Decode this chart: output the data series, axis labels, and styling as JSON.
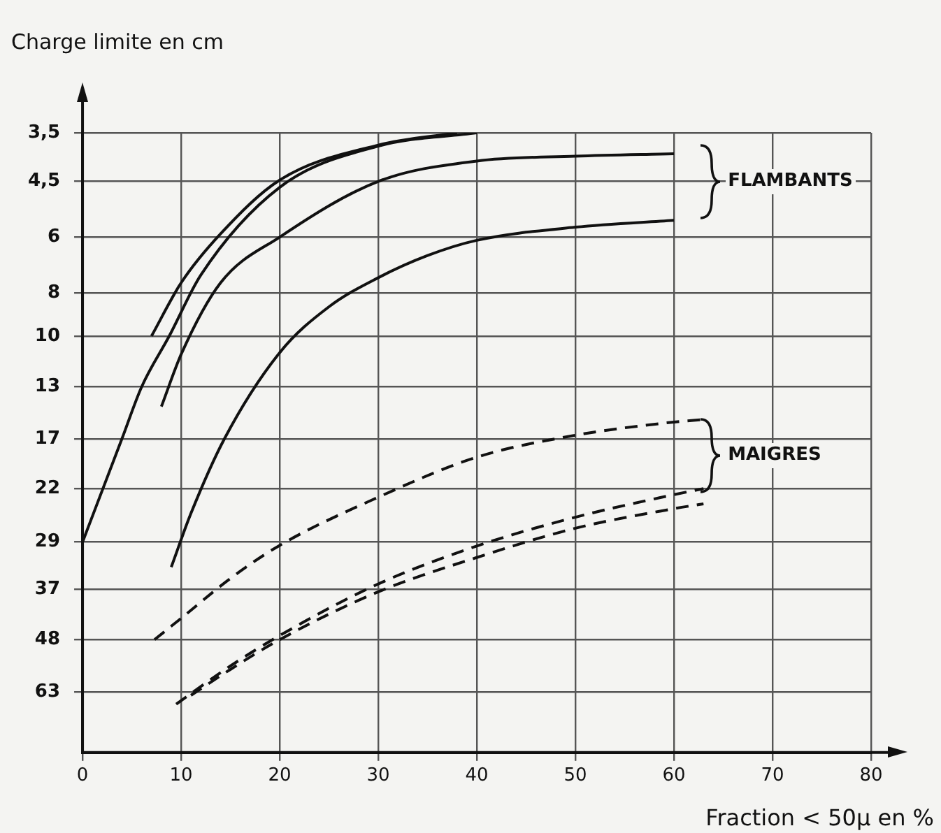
{
  "chart_data": {
    "type": "line",
    "ylabel": "Charge limite en cm",
    "xlabel": "Fraction < 50µ en %",
    "log": "y",
    "xlim": [
      0,
      80
    ],
    "xticks": [
      0,
      10,
      20,
      30,
      40,
      50,
      60,
      70,
      80
    ],
    "ylim": [
      86,
      3.5
    ],
    "yticks": [
      {
        "value": 3.5,
        "label": "3,5"
      },
      {
        "value": 4.5,
        "label": "4,5"
      },
      6,
      8,
      10,
      13,
      17,
      22,
      29,
      37,
      48,
      63
    ],
    "grid": true,
    "legend": false,
    "marker": "none",
    "series": [
      {
        "color": "#111111",
        "line_style": "solid",
        "x": [
          7,
          10,
          14,
          20,
          30,
          38
        ],
        "values": [
          10,
          7.6,
          5.9,
          4.47,
          3.73,
          3.5
        ]
      },
      {
        "color": "#111111",
        "line_style": "solid",
        "x": [
          0,
          4,
          6,
          8.8,
          12,
          20,
          30,
          40
        ],
        "values": [
          29,
          17,
          13,
          10,
          7.3,
          4.64,
          3.75,
          3.5
        ]
      },
      {
        "color": "#111111",
        "line_style": "solid",
        "x": [
          8,
          10,
          14,
          20,
          30,
          40,
          50,
          60
        ],
        "values": [
          14.4,
          11,
          7.6,
          6,
          4.5,
          4.05,
          3.95,
          3.9
        ]
      },
      {
        "color": "#111111",
        "line_style": "solid",
        "x": [
          9,
          11,
          14.4,
          20,
          25,
          30,
          35,
          40,
          50,
          60
        ],
        "values": [
          33,
          25,
          17,
          10.9,
          8.6,
          7.4,
          6.6,
          6.1,
          5.7,
          5.5
        ]
      },
      {
        "color": "#111111",
        "line_style": "dashed",
        "x": [
          7.3,
          10,
          15,
          20,
          30,
          40,
          50,
          60,
          63
        ],
        "values": [
          48,
          43,
          35,
          29.5,
          23,
          18.7,
          16.7,
          15.6,
          15.4
        ]
      },
      {
        "color": "#111111",
        "line_style": "dashed",
        "x": [
          9.5,
          15,
          20,
          30,
          40,
          50,
          60,
          63
        ],
        "values": [
          67,
          55,
          47,
          36,
          29.6,
          25.5,
          22.7,
          22
        ]
      },
      {
        "color": "#111111",
        "line_style": "dashed",
        "x": [
          11,
          15,
          20,
          30,
          40,
          50,
          60,
          63
        ],
        "values": [
          64,
          56,
          48,
          37.5,
          31.4,
          27,
          24.4,
          23.8
        ]
      }
    ],
    "annotations": [
      "FLAMBANTS",
      "MAIGRES"
    ]
  }
}
